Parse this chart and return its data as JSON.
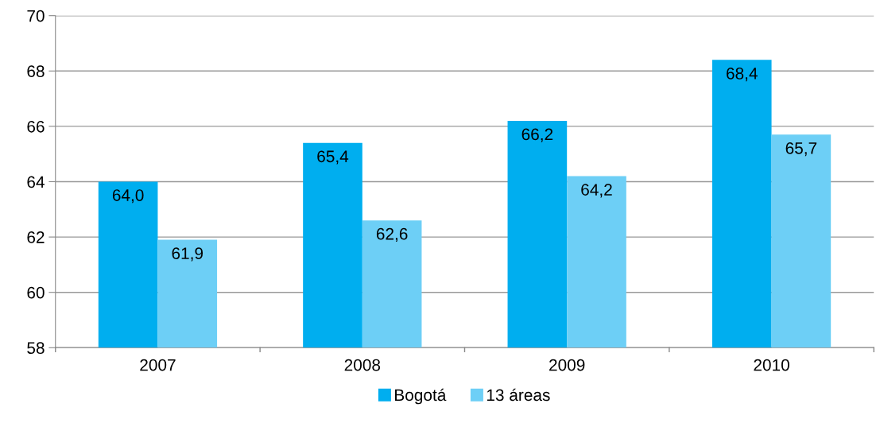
{
  "chart_data": {
    "type": "bar",
    "categories": [
      "2007",
      "2008",
      "2009",
      "2010"
    ],
    "series": [
      {
        "name": "Bogotá",
        "color": "#00aeef",
        "values": [
          64.0,
          65.4,
          66.2,
          68.4
        ],
        "value_labels": [
          "64,0",
          "65,4",
          "66,2",
          "68,4"
        ]
      },
      {
        "name": "13 áreas",
        "color": "#6dcff6",
        "values": [
          61.9,
          62.6,
          64.2,
          65.7
        ],
        "value_labels": [
          "61,9",
          "62,6",
          "64,2",
          "65,7"
        ]
      }
    ],
    "ylim": [
      58,
      70
    ],
    "yticks": [
      58,
      60,
      62,
      64,
      66,
      68,
      70
    ],
    "grid": "y",
    "legend": "bottom"
  }
}
